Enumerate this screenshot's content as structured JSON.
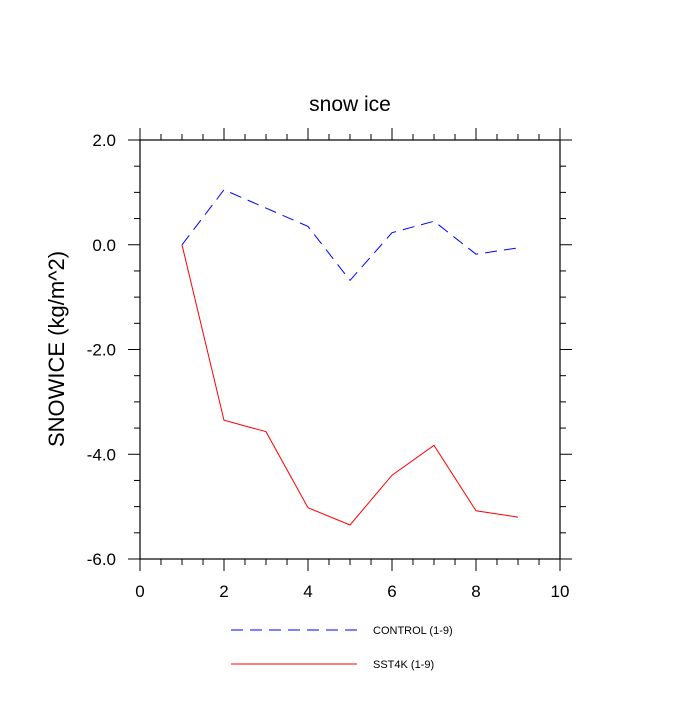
{
  "chart_data": {
    "type": "line",
    "title": "snow ice",
    "xlabel": "",
    "ylabel": "SNOWICE  (kg/m^2)",
    "xlim": [
      0,
      10
    ],
    "ylim": [
      -6.0,
      2.0
    ],
    "xticks": [
      0,
      2,
      4,
      6,
      8,
      10
    ],
    "xtick_labels": [
      "0",
      "2",
      "4",
      "6",
      "8",
      "10"
    ],
    "yticks": [
      2.0,
      0.0,
      -2.0,
      -4.0,
      -6.0
    ],
    "ytick_labels": [
      "2.0",
      "0.0",
      "-2.0",
      "-4.0",
      "-6.0"
    ],
    "grid": false,
    "legend_position": "bottom",
    "x": [
      1,
      2,
      3,
      4,
      5,
      6,
      7,
      8,
      9
    ],
    "series": [
      {
        "name": "CONTROL (1-9)",
        "color": "#0000ff",
        "dash": "dashed",
        "values": [
          0.0,
          1.05,
          0.7,
          0.35,
          -0.68,
          0.23,
          0.45,
          -0.18,
          -0.06
        ]
      },
      {
        "name": "SST4K (1-9)",
        "color": "#ff0000",
        "dash": "solid",
        "values": [
          0.0,
          -3.35,
          -3.57,
          -5.02,
          -5.35,
          -4.4,
          -3.83,
          -5.08,
          -5.2
        ]
      }
    ]
  }
}
